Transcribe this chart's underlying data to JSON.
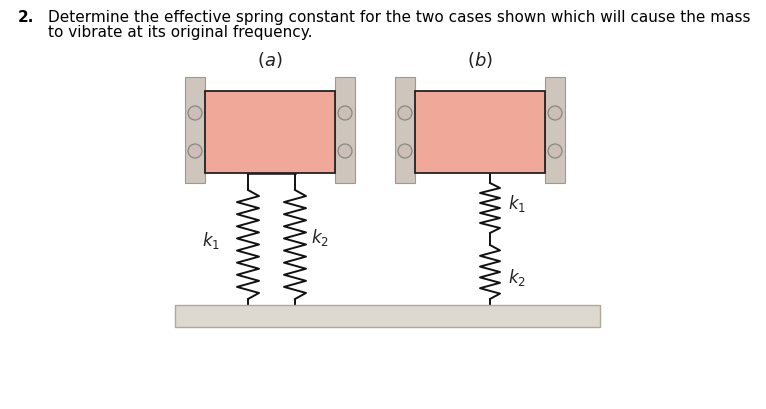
{
  "title_num": "2.",
  "title_text": "Determine the effective spring constant for the two cases shown which will cause the mass",
  "title_text2": "to vibrate at its original frequency.",
  "bg_color": "#ffffff",
  "ceiling_color": "#ddd8d0",
  "ceiling_edge": "#b0a898",
  "wall_color": "#cec6bc",
  "wall_edge": "#a09890",
  "mass_color": "#f0a898",
  "mass_edge_color": "#222222",
  "spring_color": "#111111",
  "hook_color": "#111111",
  "circle_color": "#ccbfb8",
  "circle_edge": "#888880",
  "fig_width": 7.66,
  "fig_height": 4.1,
  "dpi": 100
}
